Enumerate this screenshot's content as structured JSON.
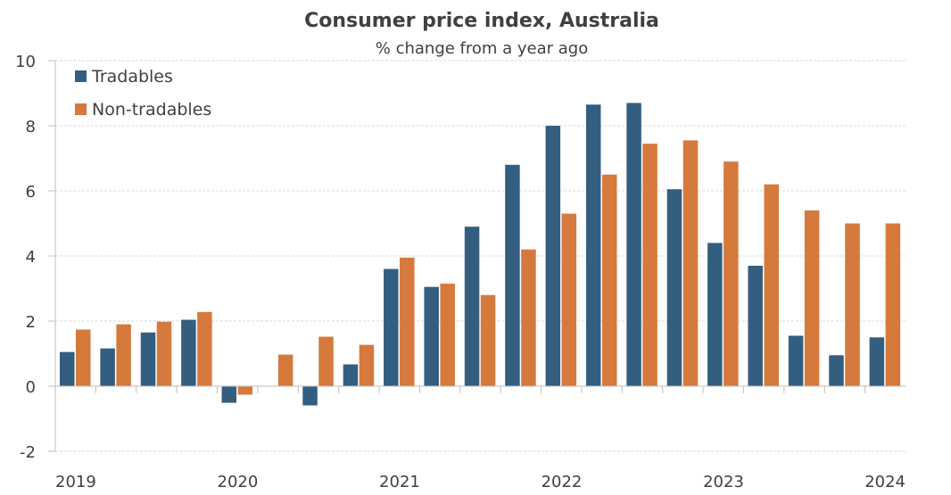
{
  "chart_data": {
    "type": "bar",
    "title": "Consumer price index, Australia",
    "subtitle": "% change from a year ago",
    "xlabel": "",
    "ylabel": "",
    "ylim": [
      -2,
      10
    ],
    "yticks": [
      -2,
      0,
      2,
      4,
      6,
      8,
      10
    ],
    "x_tick_labels": [
      {
        "label": "2019",
        "index": 0
      },
      {
        "label": "2020",
        "index": 4
      },
      {
        "label": "2021",
        "index": 8
      },
      {
        "label": "2022",
        "index": 12
      },
      {
        "label": "2023",
        "index": 16
      },
      {
        "label": "2024",
        "index": 20
      }
    ],
    "legend_position": "top-left",
    "grid": true,
    "series": [
      {
        "name": "Tradables",
        "color": "#335e80",
        "values": [
          1.05,
          1.16,
          1.65,
          2.04,
          -0.51,
          0,
          -0.59,
          0.67,
          3.6,
          3.05,
          4.9,
          6.8,
          8.0,
          8.65,
          8.7,
          6.05,
          4.4,
          3.7,
          1.55,
          0.95,
          1.5
        ]
      },
      {
        "name": "Non-tradables",
        "color": "#d6793c",
        "values": [
          1.74,
          1.9,
          1.98,
          2.28,
          -0.26,
          0.97,
          1.52,
          1.27,
          3.95,
          3.15,
          2.8,
          4.2,
          5.3,
          6.5,
          7.45,
          7.55,
          6.9,
          6.2,
          5.4,
          5.0,
          5.0
        ]
      }
    ]
  }
}
